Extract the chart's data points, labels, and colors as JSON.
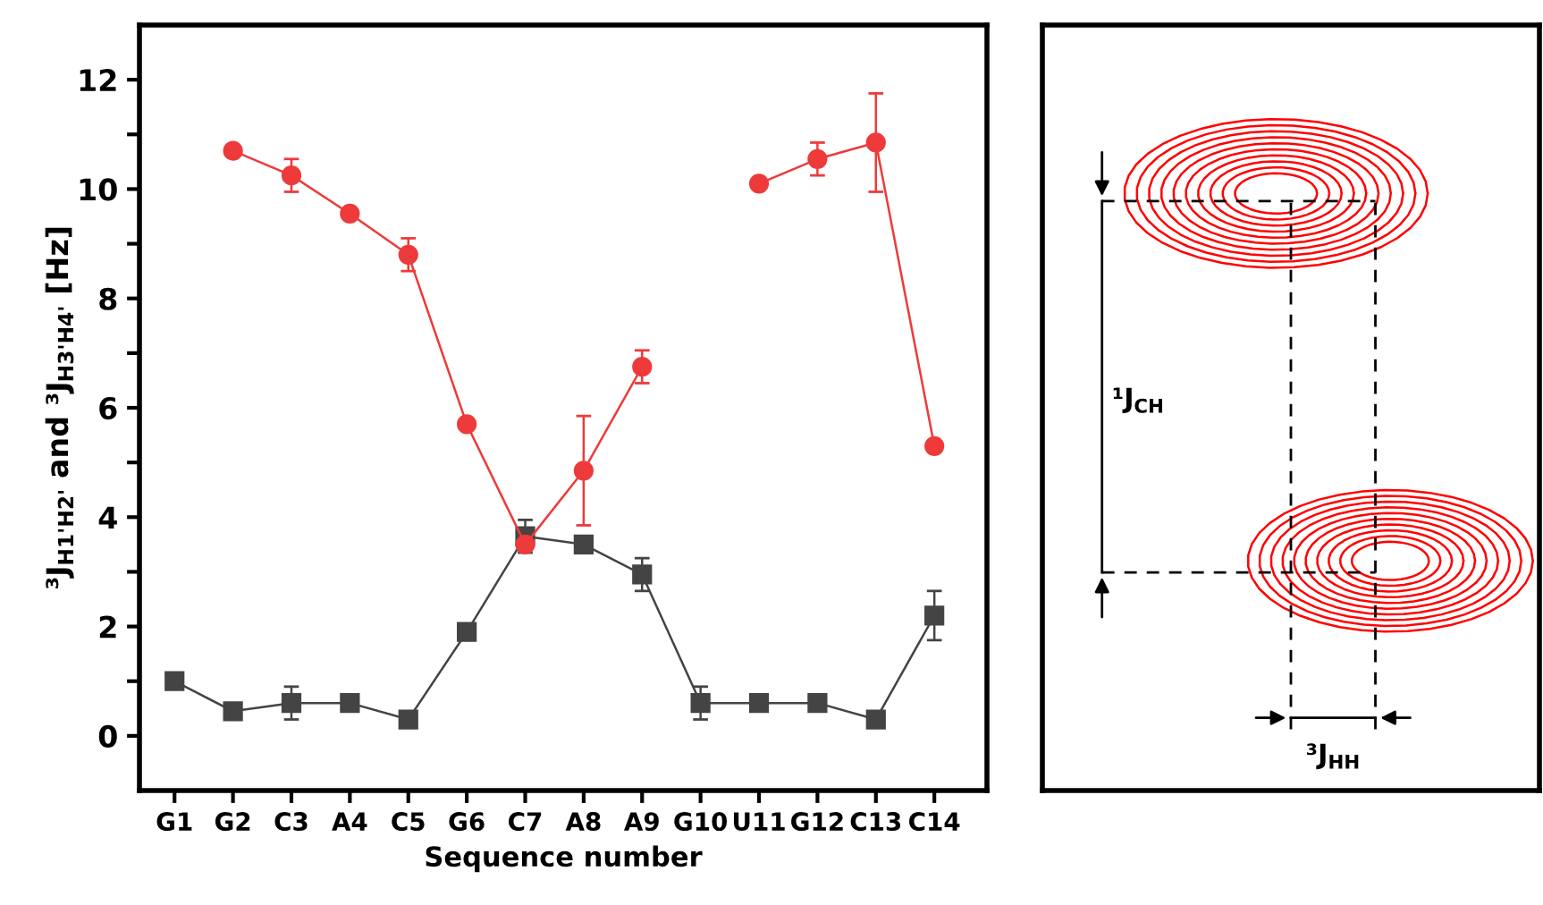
{
  "chart_data": [
    {
      "type": "line",
      "xlabel": "Sequence number",
      "ylabel": "³J$_{H1'H2'}$ and ³J$_{H3'H4'}$ [Hz]",
      "categories": [
        "G1",
        "G2",
        "C3",
        "A4",
        "C5",
        "G6",
        "C7",
        "A8",
        "A9",
        "G10",
        "U11",
        "G12",
        "C13",
        "C14"
      ],
      "ylim": [
        -1,
        13
      ],
      "yticks": [
        0,
        {
          "value": 1,
          "label": null
        },
        2,
        {
          "value": 3,
          "label": null
        },
        4,
        {
          "value": 5,
          "label": null
        },
        6,
        {
          "value": 7,
          "label": null
        },
        8,
        {
          "value": 9,
          "label": null
        },
        10,
        {
          "value": 11,
          "label": null
        },
        12
      ],
      "grid": false,
      "series": [
        {
          "color": "#ee3a3a",
          "marker": "circle",
          "values": [
            null,
            10.7,
            10.25,
            9.55,
            8.8,
            5.7,
            3.5,
            4.85,
            6.75,
            null,
            10.1,
            10.55,
            10.85,
            5.3
          ],
          "errors": [
            null,
            null,
            0.3,
            null,
            0.3,
            null,
            null,
            1.0,
            0.3,
            null,
            null,
            0.3,
            0.9,
            null
          ]
        },
        {
          "color": "#444444",
          "marker": "square",
          "values": [
            1.0,
            0.45,
            0.6,
            0.6,
            0.3,
            1.9,
            3.65,
            3.5,
            2.95,
            0.6,
            0.6,
            0.6,
            0.3,
            2.2
          ],
          "errors": [
            null,
            null,
            0.3,
            null,
            null,
            null,
            0.3,
            null,
            0.3,
            0.3,
            null,
            null,
            null,
            0.45
          ]
        }
      ]
    },
    {
      "type": "other",
      "annotations": [
        "¹J$_{CH}$",
        "³J$_{HH}$"
      ]
    }
  ]
}
